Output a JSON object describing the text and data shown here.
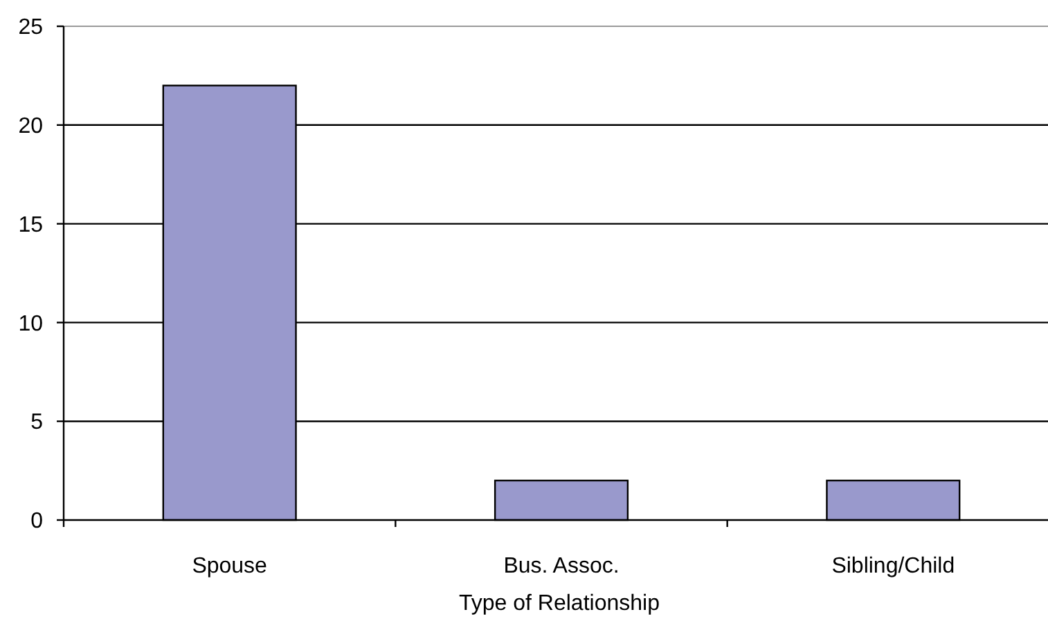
{
  "chart_data": {
    "type": "bar",
    "xlabel": "Type of Relationship",
    "categories": [
      "Spouse",
      "Bus. Assoc.",
      "Sibling/Child"
    ],
    "values": [
      22,
      2,
      2
    ],
    "color": "#9999cc",
    "ylim": [
      0,
      25
    ],
    "yticks": [
      0,
      5,
      10,
      15,
      20,
      25
    ],
    "grid": "y"
  }
}
